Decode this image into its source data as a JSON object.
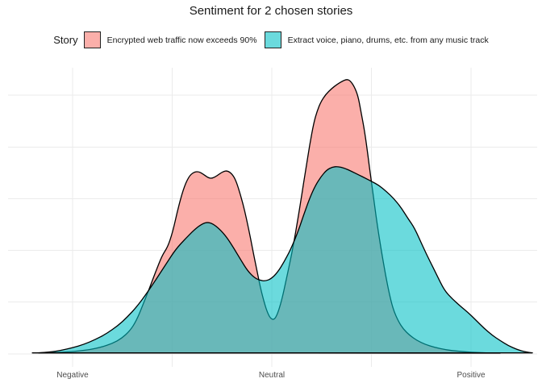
{
  "title": "Sentiment for 2 chosen stories",
  "legend": {
    "label": "Story",
    "items": [
      {
        "label": "Encrypted web traffic now exceeds 90%",
        "color": "#F8766D"
      },
      {
        "label": "Extract voice, piano, drums, etc. from any music track",
        "color": "#00BFC4"
      }
    ]
  },
  "colors": {
    "background": "#FFFFFF",
    "grid": "#EBEBEB",
    "outline": "#000000",
    "axis_label_text": "#4D4D4D",
    "title_text": "#1A1A1A"
  },
  "chart_data": {
    "type": "area",
    "subtype": "overlapping density curves (kernel density of sentiment)",
    "title": "Sentiment for 2 chosen stories",
    "xlabel": "",
    "ylabel": "",
    "legend_position": "top",
    "grid": true,
    "fill_alpha": 0.58,
    "outline_color": "#000000",
    "grid_color": "#EBEBEB",
    "x_axis": {
      "ticks": [
        {
          "label": "Negative",
          "value": -1
        },
        {
          "label": "Neutral",
          "value": 0
        },
        {
          "label": "Positive",
          "value": 1
        }
      ],
      "minor_grid_values": [
        -0.5,
        0.5
      ],
      "range": [
        -1.32,
        1.35
      ]
    },
    "y_axis": {
      "range": [
        0,
        1.09
      ],
      "unit": "relative density (tallest peak = 1.0)",
      "tick_labels_shown": false
    },
    "series": [
      {
        "name": "Encrypted web traffic now exceeds 90%",
        "color": "#F8766D",
        "points": [
          [
            -1.202,
            0.001
          ],
          [
            -1.113,
            0.002
          ],
          [
            -1.032,
            0.004
          ],
          [
            -0.968,
            0.008
          ],
          [
            -0.911,
            0.013
          ],
          [
            -0.854,
            0.022
          ],
          [
            -0.802,
            0.035
          ],
          [
            -0.753,
            0.054
          ],
          [
            -0.713,
            0.081
          ],
          [
            -0.68,
            0.118
          ],
          [
            -0.648,
            0.174
          ],
          [
            -0.615,
            0.235
          ],
          [
            -0.583,
            0.297
          ],
          [
            -0.551,
            0.356
          ],
          [
            -0.522,
            0.388
          ],
          [
            -0.498,
            0.441
          ],
          [
            -0.474,
            0.518
          ],
          [
            -0.445,
            0.597
          ],
          [
            -0.417,
            0.644
          ],
          [
            -0.393,
            0.66
          ],
          [
            -0.368,
            0.663
          ],
          [
            -0.344,
            0.653
          ],
          [
            -0.32,
            0.64
          ],
          [
            -0.3,
            0.637
          ],
          [
            -0.275,
            0.647
          ],
          [
            -0.247,
            0.662
          ],
          [
            -0.223,
            0.666
          ],
          [
            -0.198,
            0.653
          ],
          [
            -0.178,
            0.626
          ],
          [
            -0.158,
            0.579
          ],
          [
            -0.138,
            0.526
          ],
          [
            -0.117,
            0.456
          ],
          [
            -0.097,
            0.382
          ],
          [
            -0.077,
            0.309
          ],
          [
            -0.057,
            0.238
          ],
          [
            -0.036,
            0.179
          ],
          [
            -0.02,
            0.144
          ],
          [
            -0.004,
            0.125
          ],
          [
            0.012,
            0.122
          ],
          [
            0.028,
            0.141
          ],
          [
            0.049,
            0.191
          ],
          [
            0.069,
            0.256
          ],
          [
            0.089,
            0.324
          ],
          [
            0.109,
            0.397
          ],
          [
            0.13,
            0.485
          ],
          [
            0.15,
            0.576
          ],
          [
            0.17,
            0.668
          ],
          [
            0.19,
            0.759
          ],
          [
            0.211,
            0.841
          ],
          [
            0.227,
            0.882
          ],
          [
            0.247,
            0.918
          ],
          [
            0.271,
            0.944
          ],
          [
            0.3,
            0.965
          ],
          [
            0.328,
            0.981
          ],
          [
            0.356,
            0.993
          ],
          [
            0.377,
            0.999
          ],
          [
            0.393,
            0.994
          ],
          [
            0.413,
            0.974
          ],
          [
            0.433,
            0.938
          ],
          [
            0.449,
            0.876
          ],
          [
            0.466,
            0.809
          ],
          [
            0.482,
            0.724
          ],
          [
            0.498,
            0.635
          ],
          [
            0.514,
            0.55
          ],
          [
            0.53,
            0.465
          ],
          [
            0.551,
            0.368
          ],
          [
            0.571,
            0.285
          ],
          [
            0.591,
            0.212
          ],
          [
            0.611,
            0.156
          ],
          [
            0.636,
            0.115
          ],
          [
            0.66,
            0.088
          ],
          [
            0.692,
            0.065
          ],
          [
            0.729,
            0.046
          ],
          [
            0.769,
            0.032
          ],
          [
            0.818,
            0.021
          ],
          [
            0.874,
            0.012
          ],
          [
            0.935,
            0.007
          ],
          [
            1.004,
            0.003
          ],
          [
            1.077,
            0.001
          ],
          [
            1.146,
            0.0
          ]
        ]
      },
      {
        "name": "Extract voice, piano, drums, etc. from any music track",
        "color": "#00BFC4",
        "points": [
          [
            -1.17,
            0.001
          ],
          [
            -1.113,
            0.004
          ],
          [
            -1.057,
            0.01
          ],
          [
            -1.0,
            0.02
          ],
          [
            -0.943,
            0.032
          ],
          [
            -0.887,
            0.049
          ],
          [
            -0.83,
            0.071
          ],
          [
            -0.773,
            0.1
          ],
          [
            -0.725,
            0.132
          ],
          [
            -0.676,
            0.171
          ],
          [
            -0.628,
            0.218
          ],
          [
            -0.579,
            0.271
          ],
          [
            -0.53,
            0.326
          ],
          [
            -0.482,
            0.379
          ],
          [
            -0.433,
            0.418
          ],
          [
            -0.389,
            0.45
          ],
          [
            -0.352,
            0.471
          ],
          [
            -0.324,
            0.478
          ],
          [
            -0.296,
            0.472
          ],
          [
            -0.263,
            0.453
          ],
          [
            -0.227,
            0.424
          ],
          [
            -0.19,
            0.382
          ],
          [
            -0.154,
            0.338
          ],
          [
            -0.121,
            0.3
          ],
          [
            -0.089,
            0.276
          ],
          [
            -0.061,
            0.266
          ],
          [
            -0.032,
            0.263
          ],
          [
            -0.004,
            0.271
          ],
          [
            0.028,
            0.294
          ],
          [
            0.061,
            0.332
          ],
          [
            0.093,
            0.376
          ],
          [
            0.126,
            0.432
          ],
          [
            0.158,
            0.5
          ],
          [
            0.19,
            0.565
          ],
          [
            0.219,
            0.612
          ],
          [
            0.247,
            0.644
          ],
          [
            0.275,
            0.668
          ],
          [
            0.304,
            0.679
          ],
          [
            0.332,
            0.681
          ],
          [
            0.364,
            0.675
          ],
          [
            0.401,
            0.663
          ],
          [
            0.437,
            0.65
          ],
          [
            0.47,
            0.638
          ],
          [
            0.502,
            0.626
          ],
          [
            0.538,
            0.612
          ],
          [
            0.575,
            0.59
          ],
          [
            0.611,
            0.565
          ],
          [
            0.648,
            0.532
          ],
          [
            0.684,
            0.491
          ],
          [
            0.717,
            0.456
          ],
          [
            0.757,
            0.391
          ],
          [
            0.794,
            0.335
          ],
          [
            0.83,
            0.282
          ],
          [
            0.866,
            0.229
          ],
          [
            0.907,
            0.197
          ],
          [
            0.947,
            0.171
          ],
          [
            0.984,
            0.149
          ],
          [
            1.024,
            0.121
          ],
          [
            1.065,
            0.091
          ],
          [
            1.105,
            0.066
          ],
          [
            1.146,
            0.046
          ],
          [
            1.186,
            0.028
          ],
          [
            1.231,
            0.013
          ],
          [
            1.275,
            0.004
          ],
          [
            1.308,
            0.001
          ]
        ]
      }
    ]
  }
}
